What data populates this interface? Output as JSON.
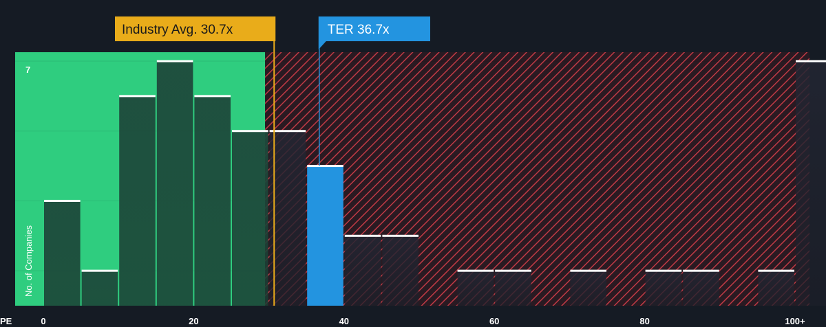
{
  "chart_data": {
    "type": "bar",
    "x_axis_label": "PE",
    "y_axis_label": "No. of Companies",
    "x_ticks": [
      "0",
      "20",
      "40",
      "60",
      "80",
      "100+"
    ],
    "y_max_label": "7",
    "ylim": [
      0,
      7
    ],
    "xlim": [
      0,
      100
    ],
    "bin_width": 5,
    "bins": [
      {
        "start": 0,
        "count": 3
      },
      {
        "start": 5,
        "count": 1
      },
      {
        "start": 10,
        "count": 6
      },
      {
        "start": 15,
        "count": 7
      },
      {
        "start": 20,
        "count": 6
      },
      {
        "start": 25,
        "count": 5
      },
      {
        "start": 30,
        "count": 5
      },
      {
        "start": 35,
        "count": 4,
        "highlight": true
      },
      {
        "start": 40,
        "count": 2
      },
      {
        "start": 45,
        "count": 2
      },
      {
        "start": 55,
        "count": 1
      },
      {
        "start": 60,
        "count": 1
      },
      {
        "start": 70,
        "count": 1
      },
      {
        "start": 80,
        "count": 1
      },
      {
        "start": 85,
        "count": 1
      },
      {
        "start": 95,
        "count": 1
      },
      {
        "start": 100,
        "count": 7
      }
    ],
    "fair_zone_max": 29.5,
    "industry_avg": {
      "label": "Industry Avg. 30.7x",
      "value": 30.7
    },
    "company": {
      "label": "TER 36.7x",
      "value": 36.7
    },
    "colors": {
      "background": "#151b24",
      "fair_zone": "#2fcd7f",
      "overvalued_bg": "#2a1a22",
      "hatch": "#c03a45",
      "bar_fill": "#1f4a3c",
      "bar_cap": "#ffffff",
      "highlight": "#2394e0",
      "industry": "#e9ac1a",
      "text": "#ffffff"
    }
  }
}
